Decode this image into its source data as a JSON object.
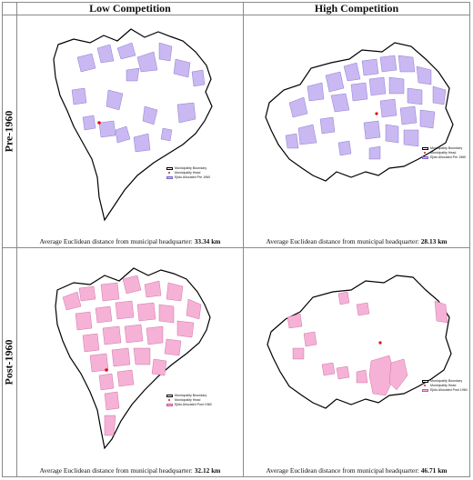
{
  "columns": [
    "Low Competition",
    "High Competition"
  ],
  "rows": [
    "Pre-1960",
    "Post-1960"
  ],
  "colors": {
    "pre_fill": "#c9b8f2",
    "pre_stroke": "#7b66c4",
    "post_fill": "#f5b2d6",
    "post_stroke": "#c75b96",
    "boundary": "#000000",
    "head_marker": "#e01010"
  },
  "panels": [
    {
      "id": "low-pre",
      "caption_prefix": "Average Euclidean distance from municipal headquarter:",
      "distance": "33.34 km",
      "legend": [
        "Municipality Boundary",
        "Municipality Head",
        "Ejido Allocated Pre 1960"
      ]
    },
    {
      "id": "high-pre",
      "caption_prefix": "Average Euclidean distance from municipal headquarter:",
      "distance": "28.13 km",
      "legend": [
        "Municipality Boundary",
        "Municipality Head",
        "Ejido Allocated Pre 1960"
      ]
    },
    {
      "id": "low-post",
      "caption_prefix": "Average Euclidean distance from municipal headquarter:",
      "distance": "32.12 km",
      "legend": [
        "Municipality Boundary",
        "Municipality Head",
        "Ejido Allocated Post 1960"
      ]
    },
    {
      "id": "high-post",
      "caption_prefix": "Average Euclidean distance from municipal headquarter:",
      "distance": "46.71 km",
      "legend": [
        "Municipality Boundary",
        "Municipality Head",
        "Ejido Allocated Post 1960"
      ]
    }
  ]
}
